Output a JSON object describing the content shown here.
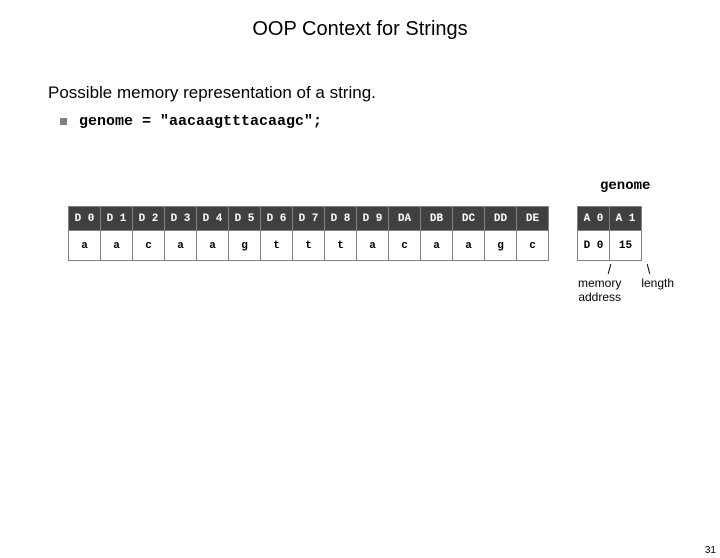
{
  "title": "OOP Context for Strings",
  "subtitle": "Possible memory representation of a string.",
  "code_line": "genome = \"aacaagtttacaagc\";",
  "genome_label": "genome",
  "main_table": {
    "headers": [
      "D 0",
      "D 1",
      "D 2",
      "D 3",
      "D 4",
      "D 5",
      "D 6",
      "D 7",
      "D 8",
      "D 9",
      "DA",
      "DB",
      "DC",
      "DD",
      "DE"
    ],
    "values": [
      "a",
      "a",
      "c",
      "a",
      "a",
      "g",
      "t",
      "t",
      "t",
      "a",
      "c",
      "a",
      "a",
      "g",
      "c"
    ],
    "header_bg": "#404040",
    "header_fg": "#ffffff",
    "cell_bg": "#ffffff",
    "cell_fg": "#000000",
    "border_color": "#808080"
  },
  "side_table": {
    "headers": [
      "A 0",
      "A 1"
    ],
    "values": [
      "D 0",
      "15"
    ],
    "header_bg": "#404040",
    "header_fg": "#ffffff"
  },
  "annot_left": "memory\naddress",
  "annot_right": "length",
  "page_number": "31"
}
